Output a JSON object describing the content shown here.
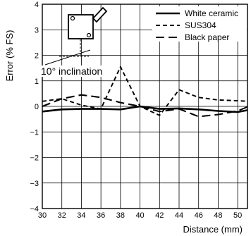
{
  "chart_data": {
    "type": "line",
    "title": "",
    "xlabel": "Distance (mm)",
    "ylabel": "Error (% FS)",
    "xlim": [
      30,
      51
    ],
    "ylim": [
      -4,
      4
    ],
    "x_ticks": [
      30,
      32,
      34,
      36,
      38,
      40,
      42,
      44,
      46,
      48,
      50
    ],
    "y_ticks": [
      -4,
      -3,
      -2,
      -1,
      0,
      1,
      2,
      3,
      4
    ],
    "grid": true,
    "legend_position": "top-right",
    "series": [
      {
        "name": "White ceramic",
        "style": "solid",
        "color": "#000000",
        "x": [
          30,
          32,
          34,
          36,
          38,
          40,
          42,
          44,
          46,
          48,
          50,
          51
        ],
        "y": [
          -0.2,
          -0.12,
          -0.1,
          -0.1,
          -0.12,
          0.0,
          -0.1,
          -0.08,
          -0.12,
          -0.18,
          -0.22,
          -0.15
        ]
      },
      {
        "name": "SUS304",
        "style": "dashed",
        "color": "#000000",
        "x": [
          30,
          32,
          34,
          36,
          38,
          40,
          42,
          44,
          46,
          48,
          50,
          51
        ],
        "y": [
          0.2,
          0.3,
          0.05,
          -0.1,
          1.55,
          0.0,
          -0.35,
          0.65,
          0.35,
          0.25,
          0.22,
          0.2
        ]
      },
      {
        "name": "Black paper",
        "style": "long-dash",
        "color": "#000000",
        "x": [
          30,
          32,
          34,
          36,
          38,
          40,
          42,
          44,
          46,
          48,
          50,
          51
        ],
        "y": [
          0.0,
          0.3,
          0.45,
          0.35,
          0.15,
          0.0,
          -0.2,
          -0.1,
          -0.4,
          -0.32,
          -0.18,
          -0.02
        ]
      }
    ],
    "annotations": [
      {
        "text": "10° inclination"
      }
    ]
  }
}
